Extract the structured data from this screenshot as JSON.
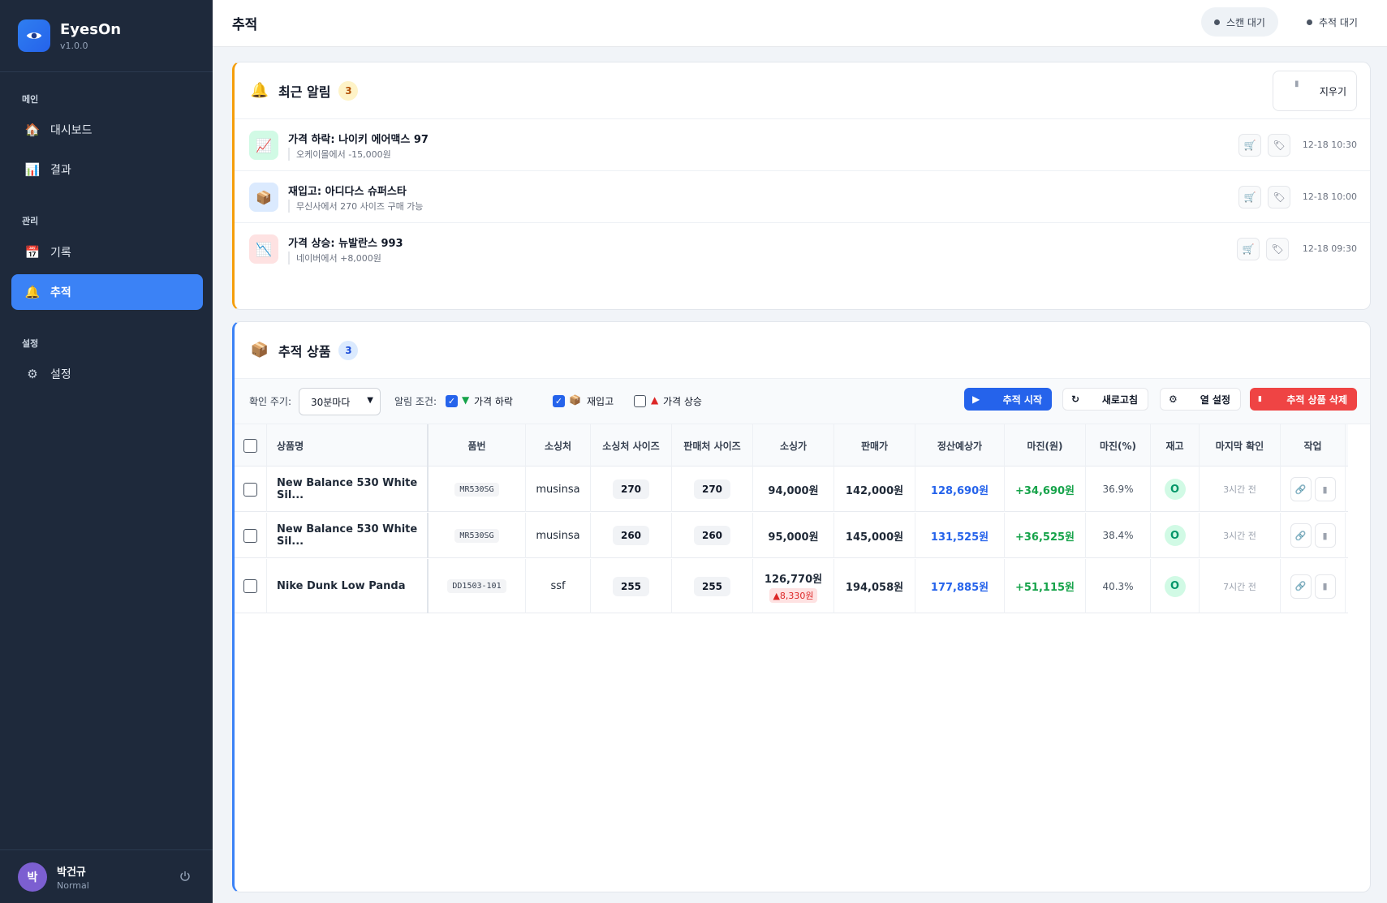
{
  "app": {
    "name": "EyesOn",
    "version": "v1.0.0"
  },
  "sidebar": {
    "sections": [
      {
        "title": "메인",
        "items": [
          {
            "label": "대시보드",
            "icon": "house-icon"
          },
          {
            "label": "결과",
            "icon": "chart-icon"
          }
        ]
      },
      {
        "title": "관리",
        "items": [
          {
            "label": "기록",
            "icon": "calendar-icon"
          },
          {
            "label": "추적",
            "icon": "bell-icon",
            "active": true
          }
        ]
      },
      {
        "title": "설정",
        "items": [
          {
            "label": "설정",
            "icon": "gear-icon"
          }
        ]
      }
    ],
    "user": {
      "initial": "박",
      "name": "박건규",
      "role": "Normal"
    }
  },
  "header": {
    "title": "추적",
    "status_scan": "스캔 대기",
    "status_track": "추적 대기"
  },
  "alerts": {
    "title": "최근 알림",
    "count": "3",
    "clear_label": "지우기",
    "items": [
      {
        "title": "가격 하락: 나이키 에어맥스 97",
        "desc": "오케이몰에서 -15,000원",
        "time": "12-18 10:30",
        "icon": "chart-down-icon",
        "bg": "#d1fae5"
      },
      {
        "title": "재입고: 아디다스 슈퍼스타",
        "desc": "무신사에서 270 사이즈 구매 가능",
        "time": "12-18 10:00",
        "icon": "package-icon",
        "bg": "#dbeafe"
      },
      {
        "title": "가격 상승: 뉴발란스 993",
        "desc": "네이버에서 +8,000원",
        "time": "12-18 09:30",
        "icon": "chart-up-icon",
        "bg": "#fee2e2"
      }
    ]
  },
  "tracked": {
    "title": "추적 상품",
    "count": "3",
    "toolbar": {
      "interval_label": "확인 주기:",
      "interval_value": "30분마다",
      "condition_label": "알림 조건:",
      "cond_drop": "가격 하락",
      "cond_restock": "재입고",
      "cond_rise": "가격 상승",
      "start_label": "추적 시작",
      "refresh_label": "새로고침",
      "columns_label": "열 설정",
      "delete_label": "추적 상품 삭제"
    },
    "columns": [
      "상품명",
      "품번",
      "소싱처",
      "소싱처 사이즈",
      "판매처 사이즈",
      "소싱가",
      "판매가",
      "정산예상가",
      "마진(원)",
      "마진(%)",
      "재고",
      "마지막 확인",
      "작업"
    ],
    "rows": [
      {
        "name": "New Balance 530 White Sil...",
        "code": "MR530SG",
        "source": "musinsa",
        "src_size": "270",
        "sell_size": "270",
        "cost": "94,000원",
        "cost_delta": "",
        "price": "142,000원",
        "payout": "128,690원",
        "margin": "+34,690원",
        "margin_pct": "36.9%",
        "stock": "O",
        "checked": "3시간 전"
      },
      {
        "name": "New Balance 530 White Sil...",
        "code": "MR530SG",
        "source": "musinsa",
        "src_size": "260",
        "sell_size": "260",
        "cost": "95,000원",
        "cost_delta": "",
        "price": "145,000원",
        "payout": "131,525원",
        "margin": "+36,525원",
        "margin_pct": "38.4%",
        "stock": "O",
        "checked": "3시간 전"
      },
      {
        "name": "Nike Dunk Low Panda",
        "code": "DD1503-101",
        "source": "ssf",
        "src_size": "255",
        "sell_size": "255",
        "cost": "126,770원",
        "cost_delta": "▲8,330원",
        "price": "194,058원",
        "payout": "177,885원",
        "margin": "+51,115원",
        "margin_pct": "40.3%",
        "stock": "O",
        "checked": "7시간 전"
      }
    ]
  },
  "colors": {
    "sidebar": "#1e293b",
    "accent": "#3b82f6",
    "warning": "#f59e0b",
    "danger": "#ef4444",
    "success": "#16a34a",
    "payout": "#2563eb"
  }
}
